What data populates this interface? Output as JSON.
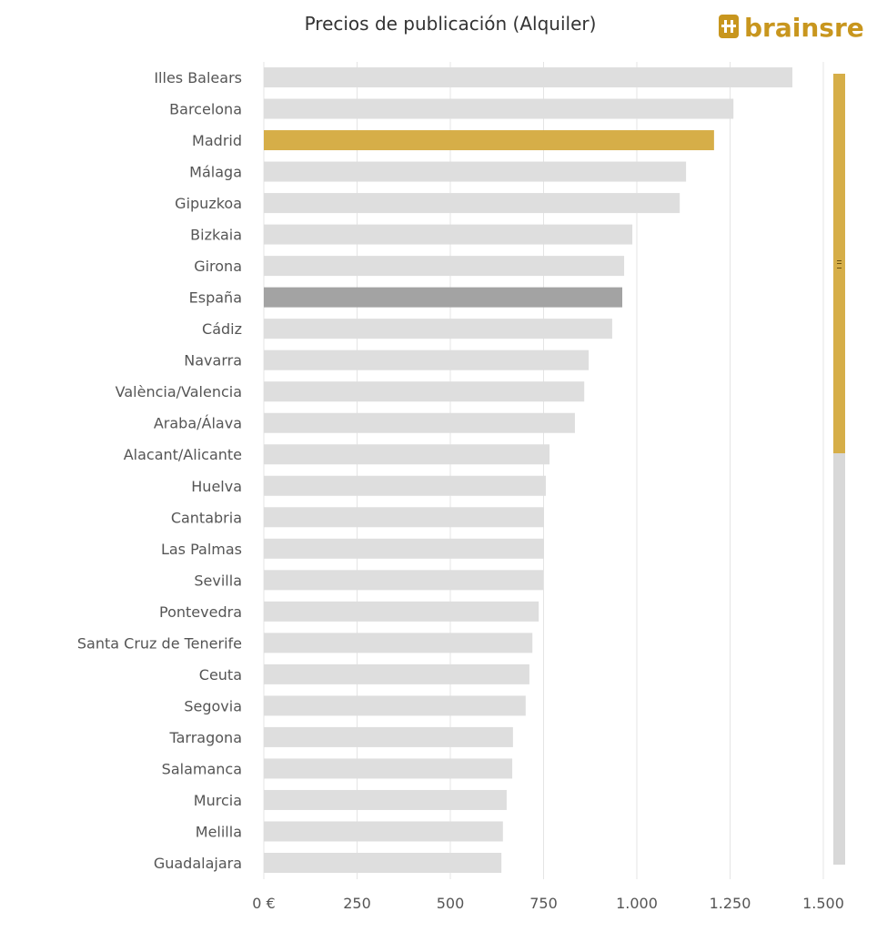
{
  "logo_text": "brainsre",
  "colors": {
    "default": "#dedede",
    "highlight": "#d6ae48",
    "reference": "#a3a3a3",
    "grid": "#e4e4e4"
  },
  "scrollbar": {
    "thumb_fraction": 0.48,
    "thumb_offset": 0
  },
  "chart_data": {
    "type": "bar",
    "orientation": "horizontal",
    "title": "Precios de publicación (Alquiler)",
    "xlabel": "",
    "ylabel": "",
    "xlim": [
      0,
      1500
    ],
    "xticks": [
      0,
      250,
      500,
      750,
      1000,
      1250,
      1500
    ],
    "xtick_labels": [
      "0 €",
      "250",
      "500",
      "750",
      "1.000",
      "1.250",
      "1.500"
    ],
    "grid": true,
    "categories": [
      "Illes Balears",
      "Barcelona",
      "Madrid",
      "Málaga",
      "Gipuzkoa",
      "Bizkaia",
      "Girona",
      "España",
      "Cádiz",
      "Navarra",
      "València/Valencia",
      "Araba/Álava",
      "Alacant/Alicante",
      "Huelva",
      "Cantabria",
      "Las Palmas",
      "Sevilla",
      "Pontevedra",
      "Santa Cruz de Tenerife",
      "Ceuta",
      "Segovia",
      "Tarragona",
      "Salamanca",
      "Murcia",
      "Melilla",
      "Guadalajara"
    ],
    "values": [
      1417,
      1259,
      1207,
      1132,
      1115,
      988,
      966,
      961,
      934,
      871,
      859,
      834,
      766,
      756,
      751,
      751,
      749,
      737,
      720,
      712,
      702,
      668,
      666,
      651,
      641,
      637
    ],
    "highlight": {
      "Madrid": "highlight",
      "España": "reference"
    }
  }
}
